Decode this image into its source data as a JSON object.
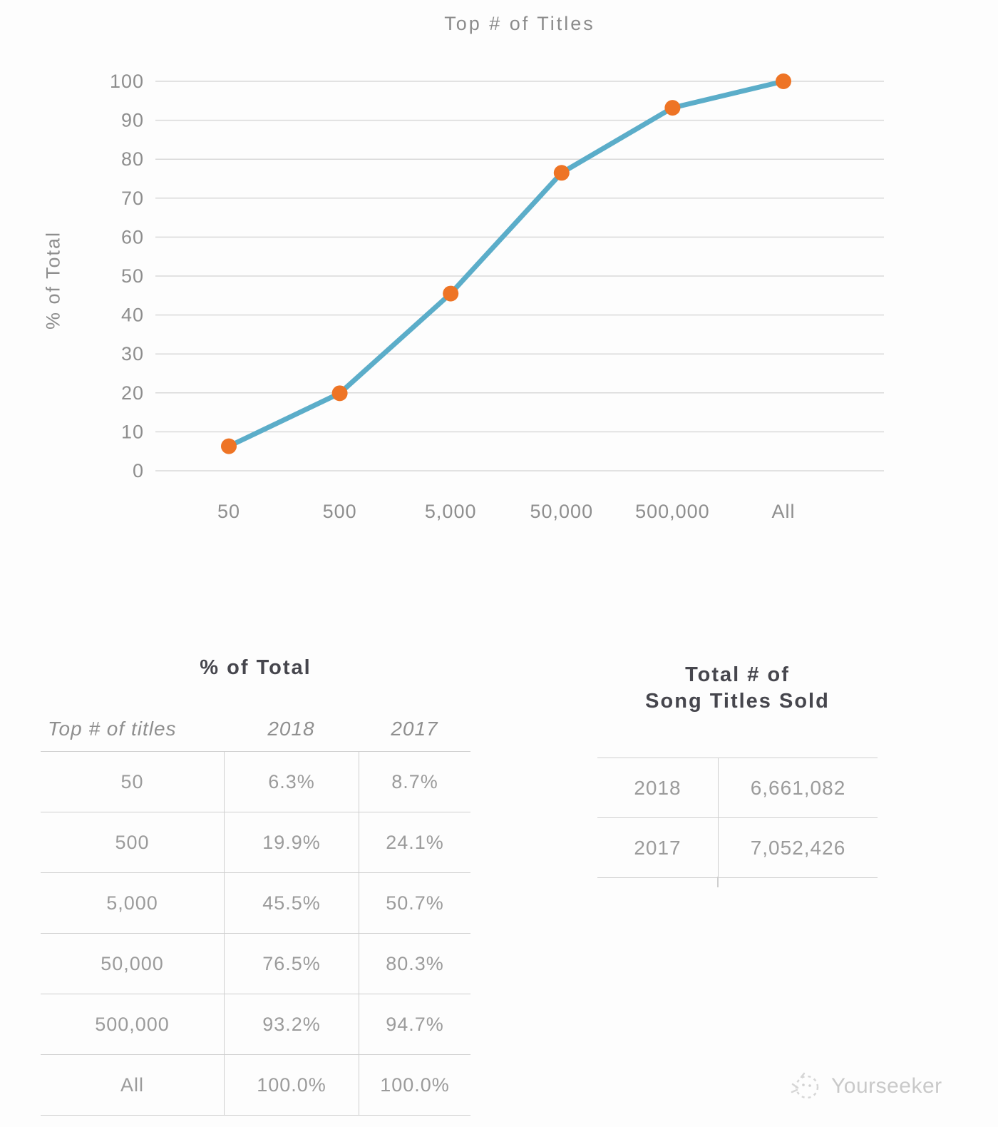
{
  "chart_data": {
    "type": "line",
    "title": "Top # of Titles",
    "ylabel": "% of Total",
    "xlabel": "",
    "categories": [
      "50",
      "500",
      "5,000",
      "50,000",
      "500,000",
      "All"
    ],
    "series": [
      {
        "name": "2018",
        "values": [
          6.3,
          19.9,
          45.5,
          76.5,
          93.2,
          100.0
        ]
      }
    ],
    "ylim": [
      0,
      100
    ],
    "yticks": [
      0,
      10,
      20,
      30,
      40,
      50,
      60,
      70,
      80,
      90,
      100
    ],
    "grid": true,
    "legend": "none",
    "colors": {
      "line": "#5badc9",
      "marker": "#ee7425",
      "grid": "#d9d9d9",
      "axis_text": "#8e8e8e"
    }
  },
  "tables": {
    "percent_of_total": {
      "title": "% of Total",
      "columns": [
        "Top # of titles",
        "2018",
        "2017"
      ],
      "rows": [
        [
          "50",
          "6.3%",
          "8.7%"
        ],
        [
          "500",
          "19.9%",
          "24.1%"
        ],
        [
          "5,000",
          "45.5%",
          "50.7%"
        ],
        [
          "50,000",
          "76.5%",
          "80.3%"
        ],
        [
          "500,000",
          "93.2%",
          "94.7%"
        ],
        [
          "All",
          "100.0%",
          "100.0%"
        ]
      ]
    },
    "total_song_titles_sold": {
      "title_line1": "Total # of",
      "title_line2": "Song Titles Sold",
      "rows": [
        [
          "2018",
          "6,661,082"
        ],
        [
          "2017",
          "7,052,426"
        ]
      ]
    }
  },
  "watermark": {
    "text": "Yourseeker"
  }
}
